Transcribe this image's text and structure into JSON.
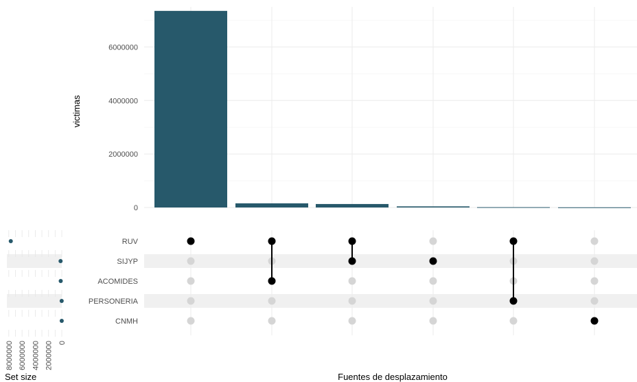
{
  "chart_data": [
    {
      "type": "bar",
      "title": "",
      "xlabel": "Fuentes de desplazamiento",
      "ylabel": "victimas",
      "ylim": [
        0,
        7500000
      ],
      "yticks": [
        "0",
        "2000000",
        "4000000",
        "6000000"
      ],
      "ytick_values": [
        0,
        2000000,
        4000000,
        6000000
      ],
      "categories": [
        "RUV",
        "ACOMIDES & RUV",
        "RUV & SIJYP",
        "SIJYP",
        "PERSONERIA & RUV",
        "CNMH"
      ],
      "values": [
        7350000,
        155000,
        130000,
        42000,
        12000,
        6000
      ],
      "bar_color": "#27596b",
      "grid": true
    },
    {
      "type": "matrix",
      "sets": [
        "RUV",
        "SIJYP",
        "ACOMIDES",
        "PERSONERIA",
        "CNMH"
      ],
      "intersections": [
        [
          "RUV"
        ],
        [
          "RUV",
          "ACOMIDES"
        ],
        [
          "RUV",
          "SIJYP"
        ],
        [
          "SIJYP"
        ],
        [
          "RUV",
          "PERSONERIA"
        ],
        [
          "CNMH"
        ]
      ],
      "active_color": "#000000",
      "inactive_color": "#d5d5d5",
      "stripe_color": "#f0f0f0"
    },
    {
      "type": "scatter",
      "xlabel": "Set size",
      "sets": [
        "RUV",
        "SIJYP",
        "ACOMIDES",
        "PERSONERIA",
        "CNMH"
      ],
      "values": [
        7700000,
        180000,
        160000,
        15000,
        8000
      ],
      "xlim": [
        8500000,
        0
      ],
      "xticks": [
        "8000000",
        "6000000",
        "4000000",
        "2000000",
        "0"
      ],
      "xtick_values": [
        8000000,
        6000000,
        4000000,
        2000000,
        0
      ],
      "point_color": "#27596b"
    }
  ]
}
